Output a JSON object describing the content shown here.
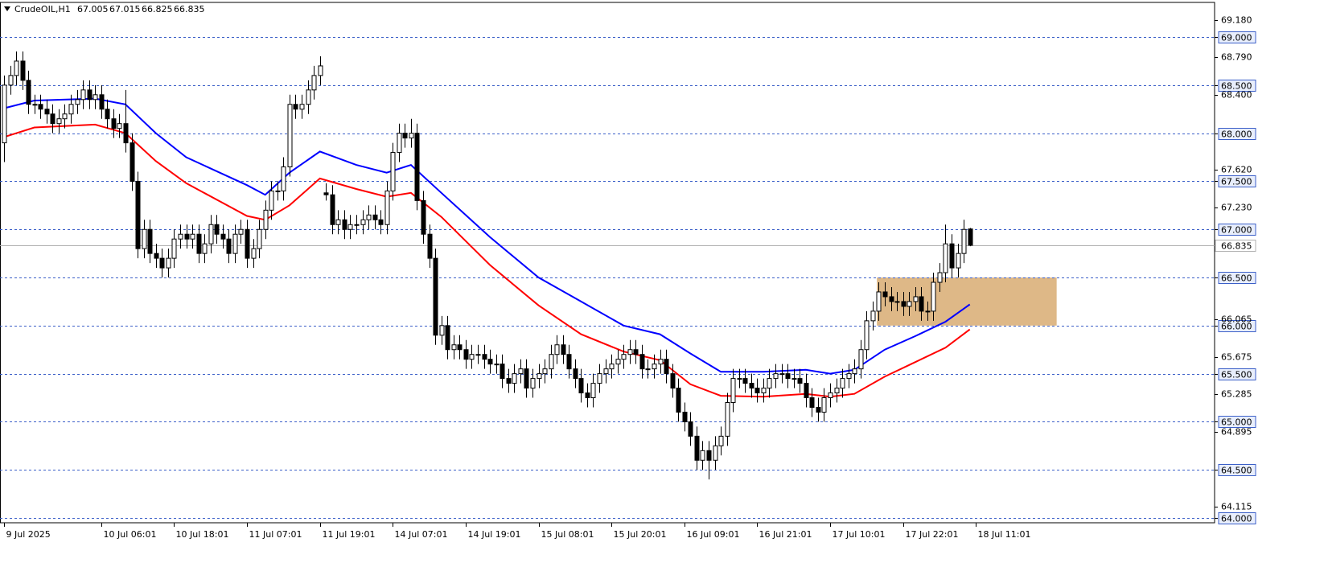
{
  "chart_data": {
    "type": "candlestick",
    "symbol": "CrudeOIL,H1",
    "up_color": "#ffffff",
    "down_color": "#000000",
    "open": [
      67.9,
      68.5,
      68.6,
      68.75,
      68.55,
      68.3,
      68.3,
      68.25,
      68.2,
      68.1,
      68.15,
      68.2,
      68.3,
      68.35,
      68.45,
      68.35,
      68.4,
      68.25,
      68.15,
      68.05,
      68.1,
      67.9,
      67.5,
      66.8,
      67.0,
      66.75,
      66.7,
      66.6,
      66.7,
      66.9,
      66.95,
      66.9,
      66.95,
      66.75,
      66.85,
      67.05,
      66.95,
      66.9,
      66.75,
      66.95,
      67.0,
      66.7,
      66.8,
      67.0,
      67.2,
      67.4,
      67.4,
      67.65,
      68.3,
      68.25,
      68.3,
      68.45,
      68.6,
      67.38,
      67.36,
      67.05,
      67.1,
      67.0,
      67.05,
      67.05,
      67.1,
      67.15,
      67.1,
      67.05,
      67.4,
      67.8,
      68.0,
      67.95,
      68.0,
      67.3,
      66.95,
      66.7,
      65.9,
      66.0,
      65.75,
      65.8,
      65.75,
      65.65,
      65.7,
      65.7,
      65.65,
      65.6,
      65.6,
      65.45,
      65.4,
      65.5,
      65.55,
      65.35,
      65.45,
      65.5,
      65.55,
      65.7,
      65.8,
      65.7,
      65.55,
      65.45,
      65.3,
      65.25,
      65.4,
      65.5,
      65.55,
      65.6,
      65.65,
      65.7,
      65.75,
      65.7,
      65.55,
      65.55,
      65.6,
      65.65,
      65.5,
      65.35,
      65.1,
      65.0,
      64.85,
      64.6,
      64.7,
      64.6,
      64.75,
      64.85,
      65.2,
      65.45,
      65.45,
      65.4,
      65.35,
      65.3,
      65.35,
      65.45,
      65.5,
      65.5,
      65.45,
      65.45,
      65.4,
      65.25,
      65.15,
      65.1,
      65.25,
      65.3,
      65.35,
      65.45,
      65.5,
      65.55,
      65.75,
      66.05,
      66.15,
      66.35,
      66.3,
      66.25,
      66.25,
      66.2,
      66.25,
      66.3,
      66.15,
      66.15,
      66.45,
      66.55,
      66.85,
      66.6,
      66.75,
      67.005
    ],
    "high": [
      68.6,
      68.7,
      68.85,
      68.85,
      68.65,
      68.4,
      68.4,
      68.35,
      68.3,
      68.25,
      68.3,
      68.4,
      68.45,
      68.55,
      68.55,
      68.5,
      68.5,
      68.35,
      68.25,
      68.2,
      68.45,
      68.0,
      67.6,
      67.1,
      67.1,
      66.85,
      66.8,
      66.8,
      67.0,
      67.05,
      67.05,
      67.05,
      67.05,
      66.95,
      67.15,
      67.15,
      67.05,
      67.0,
      67.05,
      67.1,
      67.1,
      66.9,
      67.1,
      67.3,
      67.5,
      67.5,
      67.75,
      68.4,
      68.4,
      68.4,
      68.55,
      68.7,
      68.8,
      67.48,
      67.46,
      67.2,
      67.2,
      67.15,
      67.15,
      67.2,
      67.25,
      67.25,
      67.2,
      67.5,
      67.9,
      68.1,
      68.1,
      68.15,
      68.1,
      67.4,
      67.05,
      66.8,
      66.1,
      66.1,
      65.9,
      65.9,
      65.85,
      65.8,
      65.8,
      65.8,
      65.75,
      65.7,
      65.7,
      65.55,
      65.6,
      65.65,
      65.65,
      65.55,
      65.6,
      65.65,
      65.8,
      65.9,
      65.9,
      65.8,
      65.65,
      65.55,
      65.4,
      65.5,
      65.6,
      65.65,
      65.7,
      65.75,
      65.8,
      65.85,
      65.85,
      65.8,
      65.65,
      65.7,
      65.75,
      65.75,
      65.6,
      65.45,
      65.2,
      65.1,
      64.95,
      64.8,
      64.8,
      64.85,
      64.95,
      65.3,
      65.55,
      65.55,
      65.55,
      65.5,
      65.45,
      65.45,
      65.55,
      65.6,
      65.6,
      65.6,
      65.55,
      65.55,
      65.5,
      65.35,
      65.25,
      65.35,
      65.4,
      65.45,
      65.55,
      65.6,
      65.65,
      65.85,
      66.15,
      66.25,
      66.45,
      66.45,
      66.4,
      66.35,
      66.35,
      66.35,
      66.4,
      66.4,
      66.25,
      66.55,
      66.65,
      67.05,
      66.95,
      66.85,
      67.1,
      67.015
    ],
    "low": [
      67.7,
      68.4,
      68.5,
      68.45,
      68.2,
      68.2,
      68.15,
      68.1,
      68.0,
      68.0,
      68.05,
      68.1,
      68.2,
      68.25,
      68.25,
      68.25,
      68.15,
      68.05,
      67.95,
      67.95,
      67.8,
      67.4,
      66.7,
      66.7,
      66.65,
      66.6,
      66.5,
      66.5,
      66.6,
      66.8,
      66.8,
      66.8,
      66.65,
      66.65,
      66.75,
      66.85,
      66.8,
      66.65,
      66.65,
      66.85,
      66.6,
      66.6,
      66.7,
      66.9,
      67.1,
      67.3,
      67.3,
      67.55,
      68.15,
      68.15,
      68.2,
      68.35,
      68.5,
      67.3,
      66.95,
      66.95,
      66.9,
      66.9,
      66.95,
      66.95,
      67.0,
      67.0,
      66.95,
      66.95,
      67.3,
      67.7,
      67.85,
      67.85,
      67.2,
      66.85,
      66.6,
      65.8,
      65.8,
      65.65,
      65.65,
      65.65,
      65.55,
      65.55,
      65.6,
      65.55,
      65.5,
      65.5,
      65.35,
      65.3,
      65.3,
      65.4,
      65.25,
      65.25,
      65.35,
      65.4,
      65.45,
      65.6,
      65.6,
      65.45,
      65.35,
      65.2,
      65.15,
      65.15,
      65.3,
      65.4,
      65.45,
      65.5,
      65.55,
      65.6,
      65.6,
      65.45,
      65.45,
      65.45,
      65.5,
      65.4,
      65.25,
      65.0,
      64.9,
      64.75,
      64.5,
      64.5,
      64.4,
      64.5,
      64.65,
      64.75,
      65.1,
      65.35,
      65.3,
      65.25,
      65.2,
      65.2,
      65.25,
      65.35,
      65.4,
      65.35,
      65.35,
      65.3,
      65.15,
      65.05,
      65.0,
      65.0,
      65.15,
      65.2,
      65.25,
      65.35,
      65.4,
      65.45,
      65.65,
      65.95,
      66.05,
      66.2,
      66.15,
      66.15,
      66.1,
      66.1,
      66.15,
      66.05,
      66.05,
      66.05,
      66.35,
      66.45,
      66.5,
      66.5,
      66.65,
      66.825
    ],
    "close": [
      68.5,
      68.6,
      68.75,
      68.55,
      68.3,
      68.3,
      68.25,
      68.2,
      68.1,
      68.15,
      68.2,
      68.3,
      68.35,
      68.45,
      68.35,
      68.4,
      68.25,
      68.15,
      68.05,
      68.1,
      67.9,
      67.5,
      66.8,
      67.0,
      66.75,
      66.7,
      66.6,
      66.7,
      66.9,
      66.95,
      66.9,
      66.95,
      66.75,
      66.85,
      67.05,
      66.95,
      66.9,
      66.75,
      66.95,
      67.0,
      66.7,
      66.8,
      67.0,
      67.2,
      67.4,
      67.4,
      67.65,
      68.3,
      68.25,
      68.3,
      68.45,
      68.6,
      68.7,
      67.36,
      67.05,
      67.1,
      67.0,
      67.05,
      67.05,
      67.1,
      67.15,
      67.1,
      67.05,
      67.4,
      67.8,
      68.0,
      67.95,
      68.0,
      67.3,
      66.95,
      66.7,
      65.9,
      66.0,
      65.75,
      65.8,
      65.75,
      65.65,
      65.7,
      65.7,
      65.65,
      65.6,
      65.6,
      65.45,
      65.4,
      65.5,
      65.55,
      65.35,
      65.45,
      65.5,
      65.55,
      65.7,
      65.8,
      65.7,
      65.55,
      65.45,
      65.3,
      65.25,
      65.4,
      65.5,
      65.55,
      65.6,
      65.65,
      65.7,
      65.75,
      65.7,
      65.55,
      65.55,
      65.6,
      65.65,
      65.5,
      65.35,
      65.1,
      65.0,
      64.85,
      64.6,
      64.7,
      64.6,
      64.75,
      64.85,
      65.2,
      65.45,
      65.45,
      65.4,
      65.35,
      65.3,
      65.35,
      65.45,
      65.5,
      65.5,
      65.45,
      65.45,
      65.4,
      65.25,
      65.15,
      65.1,
      65.25,
      65.3,
      65.35,
      65.45,
      65.5,
      65.55,
      65.75,
      66.05,
      66.15,
      66.35,
      66.3,
      66.25,
      66.25,
      66.2,
      66.25,
      66.3,
      66.15,
      66.15,
      66.45,
      66.55,
      66.85,
      66.6,
      66.75,
      67.0,
      66.835
    ],
    "ma_lines": [
      {
        "color": "#0000ff",
        "x": [
          0,
          5,
          15,
          20,
          25,
          30,
          40,
          43,
          47,
          52,
          58,
          63,
          67,
          72,
          80,
          88,
          95,
          102,
          108,
          113,
          118,
          125,
          132,
          136,
          140,
          145,
          150,
          155,
          159
        ],
        "values": [
          68.26,
          68.34,
          68.36,
          68.3,
          68.0,
          67.75,
          67.46,
          67.36,
          67.59,
          67.81,
          67.67,
          67.59,
          67.67,
          67.38,
          66.92,
          66.5,
          66.25,
          66.0,
          65.91,
          65.71,
          65.52,
          65.52,
          65.54,
          65.5,
          65.54,
          65.75,
          65.89,
          66.04,
          66.22
        ]
      },
      {
        "color": "#ff0000",
        "x": [
          0,
          5,
          15,
          20,
          25,
          30,
          40,
          43,
          47,
          52,
          58,
          63,
          67,
          72,
          80,
          88,
          95,
          102,
          108,
          113,
          118,
          125,
          132,
          136,
          140,
          145,
          150,
          155,
          159
        ],
        "values": [
          67.96,
          68.06,
          68.09,
          68.0,
          67.71,
          67.48,
          67.14,
          67.1,
          67.25,
          67.53,
          67.42,
          67.34,
          67.38,
          67.13,
          66.63,
          66.21,
          65.91,
          65.73,
          65.64,
          65.39,
          65.27,
          65.26,
          65.29,
          65.26,
          65.29,
          65.47,
          65.62,
          65.77,
          65.96
        ]
      }
    ],
    "zone": {
      "x": [
        143.7,
        173.3
      ],
      "y": [
        66.0,
        66.5
      ],
      "color": "#deb887"
    },
    "xlim": [
      -0.66,
      199.3
    ],
    "ylim": [
      63.95,
      69.36
    ],
    "xticks": [
      {
        "value": 0,
        "label": "9 Jul 2025"
      },
      {
        "value": 16,
        "label": "10 Jul 06:01"
      },
      {
        "value": 28,
        "label": "10 Jul 18:01"
      },
      {
        "value": 40,
        "label": "11 Jul 07:01"
      },
      {
        "value": 52,
        "label": "11 Jul 19:01"
      },
      {
        "value": 64,
        "label": "14 Jul 07:01"
      },
      {
        "value": 76,
        "label": "14 Jul 19:01"
      },
      {
        "value": 88,
        "label": "15 Jul 08:01"
      },
      {
        "value": 100,
        "label": "15 Jul 20:01"
      },
      {
        "value": 112,
        "label": "16 Jul 09:01"
      },
      {
        "value": 124,
        "label": "16 Jul 21:01"
      },
      {
        "value": 136,
        "label": "17 Jul 10:01"
      },
      {
        "value": 148,
        "label": "17 Jul 22:01"
      },
      {
        "value": 160,
        "label": "18 Jul 11:01"
      }
    ],
    "yticks": [
      {
        "value": 69.18,
        "label": "69.180"
      },
      {
        "value": 68.79,
        "label": "68.790"
      },
      {
        "value": 68.4,
        "label": "68.400"
      },
      {
        "value": 67.62,
        "label": "67.620"
      },
      {
        "value": 67.23,
        "label": "67.230"
      },
      {
        "value": 66.065,
        "label": "66.065"
      },
      {
        "value": 65.675,
        "label": "65.675"
      },
      {
        "value": 65.285,
        "label": "65.285"
      },
      {
        "value": 64.895,
        "label": "64.895"
      },
      {
        "value": 64.115,
        "label": "64.115"
      }
    ],
    "levels": [
      {
        "value": 69,
        "label": "69.000"
      },
      {
        "value": 68.5,
        "label": "68.500"
      },
      {
        "value": 68,
        "label": "68.000"
      },
      {
        "value": 67.5,
        "label": "67.500"
      },
      {
        "value": 67,
        "label": "67.000"
      },
      {
        "value": 66.5,
        "label": "66.500"
      },
      {
        "value": 66,
        "label": "66.000"
      },
      {
        "value": 65.5,
        "label": "65.500"
      },
      {
        "value": 65,
        "label": "65.000"
      },
      {
        "value": 64.5,
        "label": "64.500"
      },
      {
        "value": 64,
        "label": "64.000"
      }
    ],
    "level_color": "#3b5fc8"
  }
}
